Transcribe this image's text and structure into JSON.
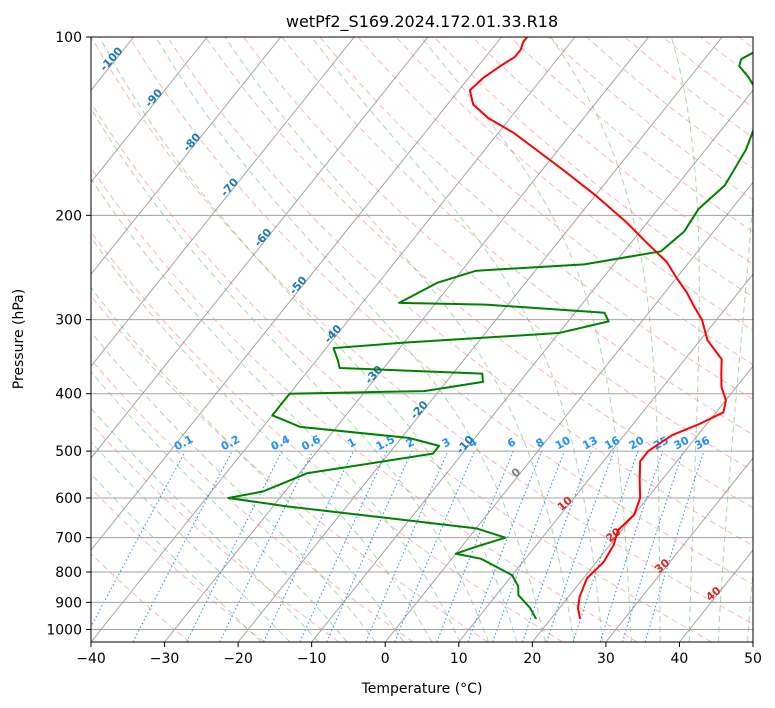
{
  "chart_data": {
    "type": "line",
    "title": "wetPf2_S169.2024.172.01.33.R18",
    "xlabel": "Temperature (°C)",
    "ylabel": "Pressure (hPa)",
    "xlim": [
      -40,
      50
    ],
    "ylim": [
      1050,
      100
    ],
    "y_scale": "log",
    "x_ticks": [
      -40,
      -30,
      -20,
      -10,
      0,
      10,
      20,
      30,
      40,
      50
    ],
    "y_ticks": [
      1000,
      900,
      800,
      700,
      600,
      500,
      400,
      300,
      200,
      100
    ],
    "x_tick_labels": [
      "−40",
      "−30",
      "−20",
      "−10",
      "0",
      "10",
      "20",
      "30",
      "40",
      "50"
    ],
    "y_tick_labels": [
      "1000",
      "900",
      "800",
      "700",
      "600",
      "500",
      "400",
      "300",
      "200",
      "100"
    ],
    "grid": true,
    "skew_diagram": true,
    "colors": {
      "temperature": "#ff0000",
      "dewpoint": "#008000",
      "dry_adiabat": "#fa8072",
      "moist_adiabat": "#2ca02c",
      "mixing_ratio": "#1e90ff",
      "isotherm": "#808080",
      "dry_adiabat_label": "#1f77b4",
      "moist_adiabat_label": "#d62728"
    },
    "isotherm_labels": [
      "0",
      "10",
      "20",
      "30",
      "40"
    ],
    "dry_adiabat_labels": [
      "-100",
      "-90",
      "-80",
      "-70",
      "-60",
      "-50",
      "-40",
      "-30",
      "-20",
      "-10"
    ],
    "mixing_ratio_labels": [
      "0.1",
      "0.2",
      "0.4",
      "0.6",
      "1",
      "1.5",
      "2",
      "3",
      "4",
      "6",
      "8",
      "10",
      "13",
      "16",
      "20",
      "25",
      "30",
      "36"
    ],
    "series": [
      {
        "key": "temperature",
        "points": [
          [
            24.0,
            960
          ],
          [
            22.5,
            920
          ],
          [
            21.5,
            880
          ],
          [
            20.5,
            820
          ],
          [
            21.0,
            770
          ],
          [
            20.5,
            720
          ],
          [
            19.5,
            680
          ],
          [
            20.0,
            640
          ],
          [
            19.0,
            600
          ],
          [
            17.0,
            560
          ],
          [
            15.0,
            520
          ],
          [
            15.0,
            500
          ],
          [
            16.5,
            470
          ],
          [
            19.0,
            450
          ],
          [
            21.0,
            430
          ],
          [
            20.0,
            410
          ],
          [
            18.0,
            390
          ],
          [
            16.5,
            370
          ],
          [
            15.0,
            350
          ],
          [
            11.0,
            325
          ],
          [
            8.0,
            300
          ],
          [
            5.5,
            285
          ],
          [
            3.0,
            270
          ],
          [
            0.0,
            255
          ],
          [
            -3.0,
            240
          ],
          [
            -8.0,
            222
          ],
          [
            -13.0,
            205
          ],
          [
            -20.0,
            185
          ],
          [
            -27.0,
            168
          ],
          [
            -33.0,
            155
          ],
          [
            -38.0,
            145
          ],
          [
            -43.0,
            137
          ],
          [
            -46.5,
            130
          ],
          [
            -48.5,
            123
          ],
          [
            -48.0,
            117
          ],
          [
            -47.0,
            112
          ],
          [
            -46.0,
            108
          ],
          [
            -46.0,
            105
          ],
          [
            -46.5,
            102
          ],
          [
            -46.5,
            100
          ]
        ]
      },
      {
        "key": "dewpoint",
        "points": [
          [
            18.0,
            960
          ],
          [
            16.0,
            920
          ],
          [
            13.0,
            875
          ],
          [
            12.0,
            845
          ],
          [
            10.0,
            810
          ],
          [
            4.0,
            760
          ],
          [
            0.0,
            745
          ],
          [
            2.0,
            725
          ],
          [
            5.0,
            700
          ],
          [
            0.0,
            675
          ],
          [
            -15.0,
            645
          ],
          [
            -28.0,
            620
          ],
          [
            -37.0,
            600
          ],
          [
            -33.0,
            585
          ],
          [
            -31.0,
            565
          ],
          [
            -29.0,
            545
          ],
          [
            -14.0,
            505
          ],
          [
            -14.0,
            490
          ],
          [
            -19.0,
            475
          ],
          [
            -35.0,
            455
          ],
          [
            -40.0,
            435
          ],
          [
            -40.0,
            415
          ],
          [
            -40.0,
            400
          ],
          [
            -22.0,
            396
          ],
          [
            -15.0,
            382
          ],
          [
            -16.0,
            370
          ],
          [
            -36.0,
            362
          ],
          [
            -37.0,
            352
          ],
          [
            -39.0,
            335
          ],
          [
            -30.0,
            328
          ],
          [
            -10.0,
            316
          ],
          [
            -4.5,
            302
          ],
          [
            -6.0,
            292
          ],
          [
            -23.0,
            283
          ],
          [
            -35.0,
            281
          ],
          [
            -32.0,
            260
          ],
          [
            -28.0,
            248
          ],
          [
            -14.0,
            242
          ],
          [
            -5.0,
            230
          ],
          [
            -4.0,
            213
          ],
          [
            -4.5,
            195
          ],
          [
            -3.5,
            178
          ],
          [
            -4.5,
            155
          ],
          [
            -6.0,
            140
          ],
          [
            -8.0,
            127
          ],
          [
            -12.0,
            117
          ],
          [
            -14.5,
            112
          ],
          [
            -15.0,
            109
          ],
          [
            -14.0,
            106
          ],
          [
            -13.5,
            103
          ],
          [
            -12.5,
            101
          ],
          [
            -12.0,
            100
          ]
        ]
      }
    ]
  }
}
